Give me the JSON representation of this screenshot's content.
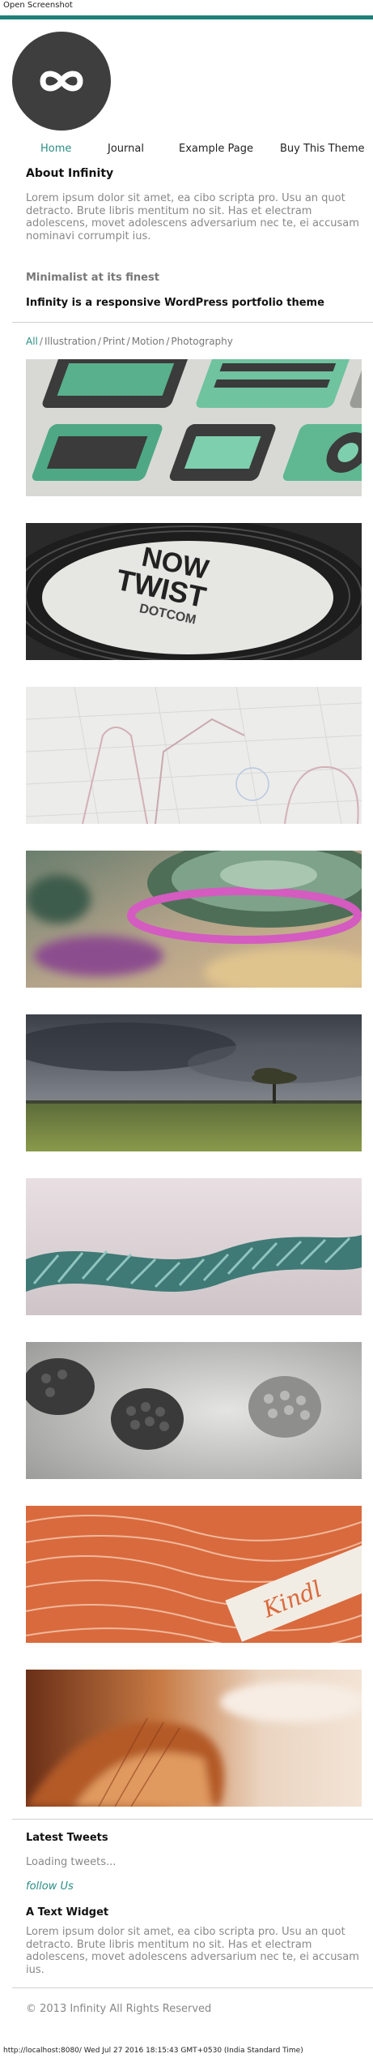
{
  "toolbar": {
    "open_screenshot": "Open Screenshot"
  },
  "site": {
    "logo_icon": "infinity-icon"
  },
  "nav": {
    "items": [
      {
        "label": "Home"
      },
      {
        "label": "Journal"
      },
      {
        "label": "Example Page"
      },
      {
        "label": "Buy This Theme"
      }
    ]
  },
  "about": {
    "title": "About Infinity",
    "text": "Lorem ipsum dolor sit amet, ea cibo scripta pro. Usu an quot detracto. Brute libris mentitum no sit. Has et electram adolescens, movet adolescens adversarium nec te, ei accusam nominavi corrumpit ius."
  },
  "intro": {
    "subtitle": "Minimalist at its finest",
    "tagline": "Infinity is a responsive WordPress portfolio theme"
  },
  "filters": {
    "items": [
      {
        "label": "All"
      },
      {
        "label": "Illustration"
      },
      {
        "label": "Print"
      },
      {
        "label": "Motion"
      },
      {
        "label": "Photography"
      }
    ],
    "separator": "/"
  },
  "sidebar": {
    "latest_tweets": "Latest Tweets",
    "loading": "Loading tweets...",
    "follow": "follow Us",
    "widget_title": "A Text Widget",
    "widget_text": "Lorem ipsum dolor sit amet, ea cibo scripta pro. Usu an quot detracto. Brute libris mentitum no sit. Has et electram adolescens, movet adolescens adversarium nec te, ei accusam ius."
  },
  "footer": {
    "copyright": "© 2013 Infinity All Rights Reserved"
  },
  "status": {
    "text": "http://localhost:8080/ Wed Jul 27 2016 18:15:43 GMT+0530 (India Standard Time)"
  },
  "portfolio": {
    "thumb2": {
      "line1": "NOW",
      "line2": "TWIST",
      "line3": "DOTCOM"
    },
    "thumb8": {
      "word": "Kindl"
    }
  }
}
